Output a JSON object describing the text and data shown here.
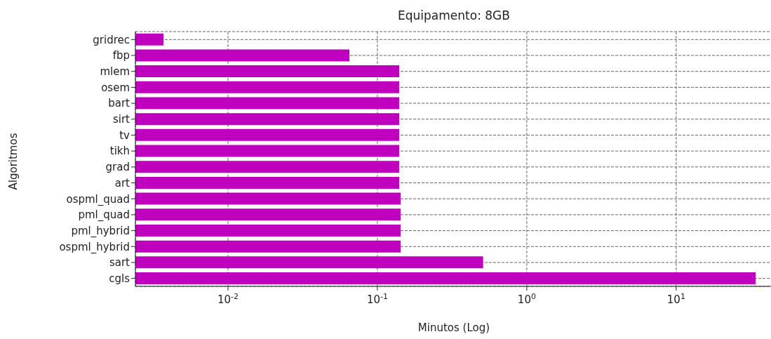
{
  "chart_data": {
    "type": "bar",
    "orientation": "horizontal",
    "title": "Equipamento: 8GB",
    "xlabel": "Minutos (Log)",
    "ylabel": "Algoritmos",
    "categories": [
      "gridrec",
      "fbp",
      "mlem",
      "osem",
      "bart",
      "sirt",
      "tv",
      "tikh",
      "grad",
      "art",
      "ospml_quad",
      "pml_quad",
      "pml_hybrid",
      "ospml_hybrid",
      "sart",
      "cgls"
    ],
    "values": [
      0.0037,
      0.065,
      0.14,
      0.14,
      0.14,
      0.14,
      0.14,
      0.14,
      0.14,
      0.14,
      0.143,
      0.143,
      0.143,
      0.143,
      0.51,
      34
    ],
    "color": "#bf00bf",
    "log": "x",
    "xlim": [
      0.0024,
      47
    ],
    "xticks": [
      {
        "value": 0.01,
        "label": "10$^{-2}$"
      },
      {
        "value": 0.1,
        "label": "10$^{-1}$"
      },
      {
        "value": 1,
        "label": "10$^{0}$"
      },
      {
        "value": 10,
        "label": "10$^{1}$"
      }
    ],
    "grid": true
  }
}
